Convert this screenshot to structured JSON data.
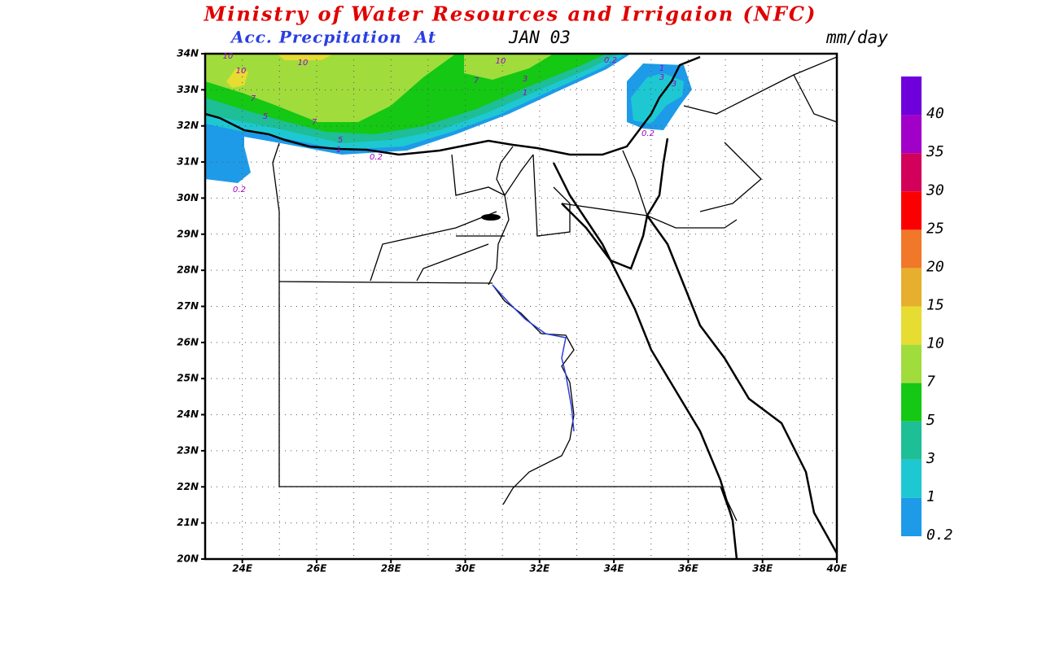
{
  "header": {
    "title": "Ministry of Water Resources and Irrigaion (NFC)",
    "subtitle": "Acc. Precpitation  At",
    "date": "JAN 03",
    "units": "mm/day"
  },
  "map": {
    "lat_labels": [
      "34N",
      "33N",
      "32N",
      "31N",
      "30N",
      "29N",
      "28N",
      "27N",
      "26N",
      "25N",
      "24N",
      "23N",
      "22N",
      "21N",
      "20N"
    ],
    "lon_labels": [
      "24E",
      "26E",
      "28E",
      "30E",
      "32E",
      "34E",
      "36E",
      "38E",
      "40E"
    ],
    "contour_labels": [
      "10",
      "10",
      "10",
      "7",
      "5",
      "7",
      "5",
      "1",
      "0.2",
      "0.2",
      "10",
      "7",
      "3",
      "1",
      "0.2",
      "1",
      "3",
      "3",
      "0.2"
    ]
  },
  "legend": {
    "items": [
      {
        "label": "0.2",
        "color": "#1e9be8"
      },
      {
        "label": "1",
        "color": "#1ec8d2"
      },
      {
        "label": "3",
        "color": "#1ebe96"
      },
      {
        "label": "5",
        "color": "#14c814"
      },
      {
        "label": "7",
        "color": "#a0dc3c"
      },
      {
        "label": "10",
        "color": "#e6dc32"
      },
      {
        "label": "15",
        "color": "#e6af2d"
      },
      {
        "label": "20",
        "color": "#f07828"
      },
      {
        "label": "25",
        "color": "#fa0000"
      },
      {
        "label": "30",
        "color": "#d2005a"
      },
      {
        "label": "35",
        "color": "#a000c8"
      },
      {
        "label": "40",
        "color": "#6e00dc"
      }
    ]
  }
}
